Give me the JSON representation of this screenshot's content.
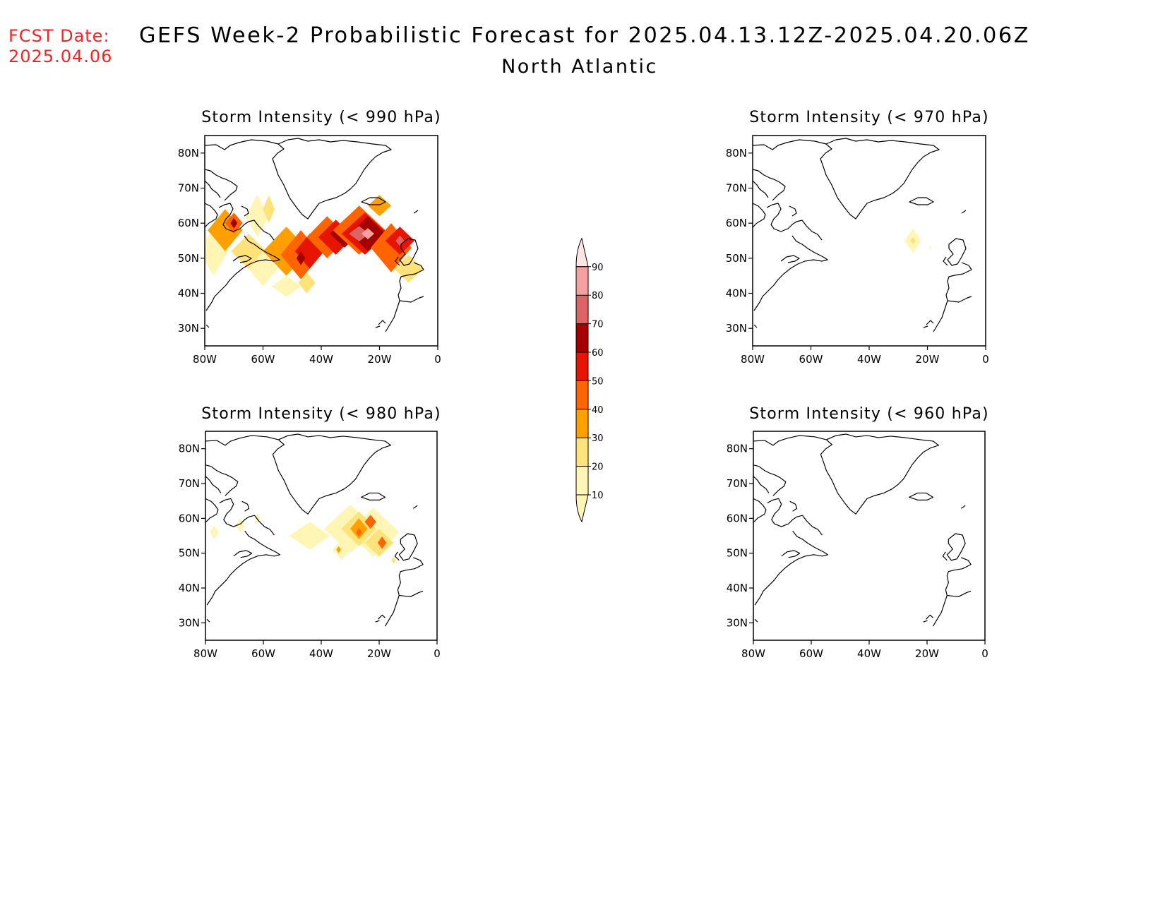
{
  "header": {
    "fcst_label": "FCST Date:",
    "fcst_date": "2025.04.06",
    "title": "GEFS Week-2 Probabilistic Forecast for 2025.04.13.12Z-2025.04.20.06Z",
    "subtitle": "North Atlantic"
  },
  "axes": {
    "lat_labels": [
      "80N",
      "70N",
      "60N",
      "50N",
      "40N",
      "30N"
    ],
    "lat_values": [
      80,
      70,
      60,
      50,
      40,
      30
    ],
    "lon_labels": [
      "80W",
      "60W",
      "40W",
      "20W",
      "0"
    ],
    "lon_values": [
      -80,
      -60,
      -40,
      -20,
      0
    ],
    "lat_range": [
      25,
      85
    ],
    "lon_range": [
      -80,
      0
    ]
  },
  "colorbar": {
    "levels": [
      "10",
      "20",
      "30",
      "40",
      "50",
      "60",
      "70",
      "80",
      "90"
    ],
    "colors": [
      "#fff5b4",
      "#ffe27a",
      "#ffa000",
      "#ff6400",
      "#e61400",
      "#a50000",
      "#dc6464",
      "#f5a0a0",
      "#ffe6e6"
    ]
  },
  "panels": [
    {
      "title": "Storm Intensity (< 990 hPa)",
      "blobs": [
        {
          "lon": -77,
          "lat": 52,
          "rl": 5,
          "rt": 7,
          "level": 1
        },
        {
          "lon": -73,
          "lat": 58,
          "rl": 6,
          "rt": 6,
          "level": 3
        },
        {
          "lon": -70,
          "lat": 60,
          "rl": 3,
          "rt": 3,
          "level": 4
        },
        {
          "lon": -70,
          "lat": 60,
          "rl": 1.2,
          "rt": 1.5,
          "level": 6
        },
        {
          "lon": -65,
          "lat": 52,
          "rl": 6,
          "rt": 5,
          "level": 2
        },
        {
          "lon": -60,
          "lat": 47,
          "rl": 5,
          "rt": 5,
          "level": 1
        },
        {
          "lon": -62,
          "lat": 62,
          "rl": 4,
          "rt": 6,
          "level": 1
        },
        {
          "lon": -58,
          "lat": 64,
          "rl": 2,
          "rt": 4,
          "level": 2
        },
        {
          "lon": -52,
          "lat": 52,
          "rl": 8,
          "rt": 7,
          "level": 3
        },
        {
          "lon": -47,
          "lat": 51,
          "rl": 7,
          "rt": 7,
          "level": 4
        },
        {
          "lon": -44,
          "lat": 52,
          "rl": 5,
          "rt": 5,
          "level": 5
        },
        {
          "lon": -47,
          "lat": 50,
          "rl": 1.5,
          "rt": 2,
          "level": 6
        },
        {
          "lon": -38,
          "lat": 56,
          "rl": 7,
          "rt": 6,
          "level": 4
        },
        {
          "lon": -35,
          "lat": 56,
          "rl": 6,
          "rt": 5,
          "level": 5
        },
        {
          "lon": -32,
          "lat": 57,
          "rl": 5,
          "rt": 4,
          "level": 6
        },
        {
          "lon": -27,
          "lat": 58,
          "rl": 9,
          "rt": 7,
          "level": 4
        },
        {
          "lon": -25,
          "lat": 57,
          "rl": 8,
          "rt": 6,
          "level": 5
        },
        {
          "lon": -24,
          "lat": 57,
          "rl": 6,
          "rt": 5,
          "level": 6
        },
        {
          "lon": -27,
          "lat": 57,
          "rl": 3.5,
          "rt": 2.2,
          "level": 7
        },
        {
          "lon": -24,
          "lat": 57,
          "rl": 2.2,
          "rt": 1.6,
          "level": 8
        },
        {
          "lon": -16,
          "lat": 53,
          "rl": 7,
          "rt": 7,
          "level": 4
        },
        {
          "lon": -13,
          "lat": 55,
          "rl": 5,
          "rt": 4,
          "level": 5
        },
        {
          "lon": -13,
          "lat": 55,
          "rl": 1.5,
          "rt": 1.5,
          "level": 7
        },
        {
          "lon": -20,
          "lat": 65,
          "rl": 4,
          "rt": 3,
          "level": 3
        },
        {
          "lon": -10,
          "lat": 47,
          "rl": 5,
          "rt": 4,
          "level": 2
        },
        {
          "lon": -52,
          "lat": 42,
          "rl": 5,
          "rt": 3,
          "level": 1
        },
        {
          "lon": -45,
          "lat": 43,
          "rl": 3,
          "rt": 3,
          "level": 2
        }
      ]
    },
    {
      "title": "Storm Intensity (< 970 hPa)",
      "blobs": [
        {
          "lon": -25,
          "lat": 55,
          "rl": 2.8,
          "rt": 3.5,
          "level": 1
        },
        {
          "lon": -25,
          "lat": 55,
          "rl": 0.8,
          "rt": 1,
          "level": 2
        },
        {
          "lon": -19,
          "lat": 53,
          "rl": 0.5,
          "rt": 0.5,
          "level": 1
        }
      ]
    },
    {
      "title": "Storm Intensity (< 980 hPa)",
      "blobs": [
        {
          "lon": -77,
          "lat": 56,
          "rl": 1.5,
          "rt": 2,
          "level": 1
        },
        {
          "lon": -68,
          "lat": 58,
          "rl": 1.5,
          "rt": 2,
          "level": 1
        },
        {
          "lon": -62,
          "lat": 60,
          "rl": 1,
          "rt": 1.5,
          "level": 1
        },
        {
          "lon": -44,
          "lat": 55,
          "rl": 7,
          "rt": 4,
          "level": 1
        },
        {
          "lon": -30,
          "lat": 57,
          "rl": 9,
          "rt": 7,
          "level": 1
        },
        {
          "lon": -22,
          "lat": 56,
          "rl": 9,
          "rt": 7,
          "level": 1
        },
        {
          "lon": -33,
          "lat": 51,
          "rl": 3,
          "rt": 3,
          "level": 1
        },
        {
          "lon": -27,
          "lat": 57,
          "rl": 6,
          "rt": 5,
          "level": 2
        },
        {
          "lon": -20,
          "lat": 53,
          "rl": 5,
          "rt": 4,
          "level": 2
        },
        {
          "lon": -27,
          "lat": 57,
          "rl": 3,
          "rt": 3,
          "level": 3
        },
        {
          "lon": -23,
          "lat": 59,
          "rl": 2,
          "rt": 2,
          "level": 4
        },
        {
          "lon": -27,
          "lat": 56,
          "rl": 1,
          "rt": 1.2,
          "level": 4
        },
        {
          "lon": -19,
          "lat": 53,
          "rl": 1.5,
          "rt": 1.8,
          "level": 4
        },
        {
          "lon": -34,
          "lat": 51,
          "rl": 0.8,
          "rt": 1,
          "level": 3
        },
        {
          "lon": -15,
          "lat": 48,
          "rl": 0.8,
          "rt": 1,
          "level": 2
        }
      ]
    },
    {
      "title": "Storm Intensity (< 960 hPa)",
      "blobs": []
    }
  ]
}
